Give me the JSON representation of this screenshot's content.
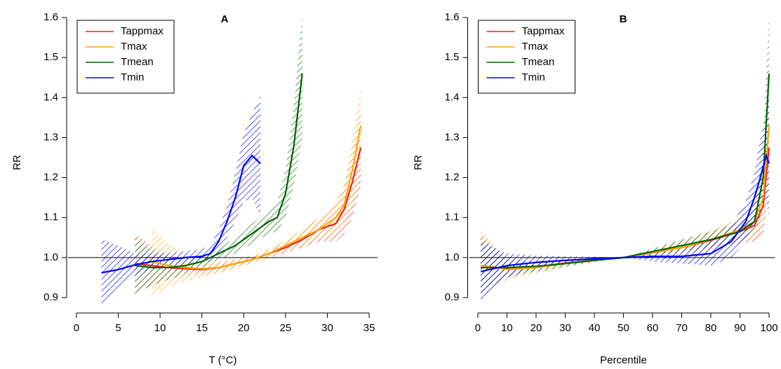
{
  "chart_data": [
    {
      "type": "line",
      "title": "A",
      "xlabel": "T (°C)",
      "ylabel": "RR",
      "xlim": [
        -1,
        36.5
      ],
      "ylim": [
        0.865,
        1.61
      ],
      "xticks": [
        0,
        5,
        10,
        15,
        20,
        25,
        30,
        35
      ],
      "yticks": [
        0.9,
        {
          "value": 1,
          "label": "1.0"
        },
        1.1,
        1.2,
        1.3,
        1.4,
        1.5,
        1.6
      ],
      "hline": 1,
      "legend": "upper left",
      "series": [
        {
          "name": "Tappmax",
          "color": "#ee2222",
          "x": [
            7,
            9,
            11,
            13,
            15,
            17,
            19,
            21,
            23,
            25,
            27,
            29,
            31,
            32,
            33,
            34
          ],
          "values": [
            0.985,
            0.98,
            0.975,
            0.972,
            0.97,
            0.975,
            0.985,
            0.995,
            1.01,
            1.025,
            1.045,
            1.07,
            1.085,
            1.12,
            1.19,
            1.275
          ],
          "lower": [
            0.91,
            0.93,
            0.945,
            0.955,
            0.958,
            0.963,
            0.975,
            0.987,
            1.0,
            1.012,
            1.025,
            1.04,
            1.04,
            1.06,
            1.1,
            1.18
          ],
          "upper": [
            1.06,
            1.03,
            1.005,
            0.99,
            0.982,
            0.987,
            0.995,
            1.003,
            1.02,
            1.04,
            1.065,
            1.1,
            1.13,
            1.18,
            1.27,
            1.37
          ]
        },
        {
          "name": "Tmax",
          "color": "#ffa500",
          "x": [
            9,
            11,
            13,
            15,
            17,
            19,
            21,
            23,
            25,
            27,
            29,
            31,
            32,
            33,
            34
          ],
          "values": [
            0.99,
            0.98,
            0.975,
            0.972,
            0.975,
            0.985,
            0.995,
            1.01,
            1.03,
            1.05,
            1.07,
            1.1,
            1.13,
            1.22,
            1.33
          ],
          "lower": [
            0.9,
            0.925,
            0.94,
            0.95,
            0.96,
            0.972,
            0.985,
            0.998,
            1.015,
            1.03,
            1.045,
            1.06,
            1.08,
            1.13,
            1.22
          ],
          "upper": [
            1.075,
            1.035,
            1.01,
            0.995,
            0.99,
            0.997,
            1.005,
            1.022,
            1.045,
            1.07,
            1.1,
            1.14,
            1.18,
            1.3,
            1.43
          ]
        },
        {
          "name": "Tmean",
          "color": "#006400",
          "x": [
            7,
            9,
            11,
            13,
            15,
            17,
            19,
            21,
            23,
            24,
            25,
            26,
            27
          ],
          "values": [
            0.98,
            0.975,
            0.975,
            0.98,
            0.99,
            1.01,
            1.03,
            1.06,
            1.09,
            1.1,
            1.16,
            1.28,
            1.46
          ],
          "lower": [
            0.91,
            0.93,
            0.945,
            0.96,
            0.975,
            0.995,
            1.01,
            1.035,
            1.06,
            1.065,
            1.1,
            1.18,
            1.3
          ],
          "upper": [
            1.05,
            1.02,
            1.0,
            0.998,
            1.005,
            1.025,
            1.05,
            1.085,
            1.12,
            1.14,
            1.22,
            1.38,
            1.61
          ]
        },
        {
          "name": "Tmin",
          "color": "#0000ff",
          "x": [
            3,
            5,
            7,
            9,
            11,
            13,
            15,
            16,
            17,
            18,
            19,
            20,
            21,
            22
          ],
          "values": [
            0.962,
            0.97,
            0.982,
            0.99,
            0.995,
            1.0,
            1.003,
            1.01,
            1.04,
            1.09,
            1.15,
            1.23,
            1.255,
            1.235
          ],
          "lower": [
            0.885,
            0.92,
            0.955,
            0.97,
            0.98,
            0.985,
            0.985,
            0.99,
            1.01,
            1.05,
            1.09,
            1.14,
            1.15,
            1.1
          ],
          "upper": [
            1.045,
            1.03,
            1.01,
            1.01,
            1.012,
            1.016,
            1.022,
            1.03,
            1.07,
            1.13,
            1.21,
            1.31,
            1.36,
            1.405
          ]
        }
      ]
    },
    {
      "type": "line",
      "title": "B",
      "xlabel": "Percentile",
      "ylabel": "RR",
      "xlim": [
        -3,
        103.5
      ],
      "ylim": [
        0.865,
        1.61
      ],
      "xticks": [
        0,
        10,
        20,
        30,
        40,
        50,
        60,
        70,
        80,
        90,
        100
      ],
      "yticks": [
        0.9,
        {
          "value": 1,
          "label": "1.0"
        },
        1.1,
        1.2,
        1.3,
        1.4,
        1.5,
        1.6
      ],
      "hline": 1,
      "legend": "upper left",
      "series": [
        {
          "name": "Tappmax",
          "color": "#ee2222",
          "x": [
            1,
            10,
            20,
            30,
            40,
            50,
            60,
            70,
            80,
            90,
            95,
            98,
            100
          ],
          "values": [
            0.98,
            0.972,
            0.977,
            0.986,
            0.994,
            1.0,
            1.012,
            1.025,
            1.043,
            1.065,
            1.08,
            1.13,
            1.275
          ],
          "lower": [
            0.92,
            0.95,
            0.965,
            0.978,
            0.99,
            1.0,
            1.005,
            1.01,
            1.02,
            1.035,
            1.04,
            1.06,
            1.18
          ],
          "upper": [
            1.06,
            0.995,
            0.99,
            0.995,
            0.998,
            1.0,
            1.02,
            1.04,
            1.065,
            1.09,
            1.12,
            1.2,
            1.37
          ]
        },
        {
          "name": "Tmax",
          "color": "#ffa500",
          "x": [
            1,
            10,
            20,
            30,
            40,
            50,
            60,
            70,
            80,
            90,
            95,
            98,
            100
          ],
          "values": [
            0.98,
            0.97,
            0.975,
            0.985,
            0.993,
            1.0,
            1.012,
            1.025,
            1.045,
            1.07,
            1.09,
            1.15,
            1.33
          ],
          "lower": [
            0.9,
            0.945,
            0.96,
            0.975,
            0.988,
            1.0,
            1.003,
            1.01,
            1.02,
            1.04,
            1.05,
            1.08,
            1.22
          ],
          "upper": [
            1.07,
            0.995,
            0.99,
            0.995,
            0.998,
            1.0,
            1.022,
            1.045,
            1.07,
            1.1,
            1.13,
            1.22,
            1.43
          ]
        },
        {
          "name": "Tmean",
          "color": "#006400",
          "x": [
            1,
            10,
            20,
            30,
            40,
            50,
            60,
            70,
            80,
            90,
            95,
            98,
            100
          ],
          "values": [
            0.975,
            0.975,
            0.978,
            0.985,
            0.993,
            1.0,
            1.015,
            1.03,
            1.045,
            1.065,
            1.09,
            1.2,
            1.46
          ],
          "lower": [
            0.91,
            0.95,
            0.965,
            0.977,
            0.989,
            1.0,
            1.008,
            1.015,
            1.025,
            1.04,
            1.06,
            1.12,
            1.3
          ],
          "upper": [
            1.05,
            0.998,
            0.99,
            0.993,
            0.997,
            1.0,
            1.022,
            1.045,
            1.065,
            1.09,
            1.12,
            1.3,
            1.61
          ]
        },
        {
          "name": "Tmin",
          "color": "#0000ff",
          "x": [
            1,
            10,
            20,
            30,
            40,
            50,
            60,
            70,
            80,
            87,
            92,
            95,
            97,
            99,
            100
          ],
          "values": [
            0.965,
            0.98,
            0.988,
            0.993,
            0.997,
            1.0,
            1.003,
            1.003,
            1.01,
            1.04,
            1.09,
            1.15,
            1.2,
            1.255,
            1.235
          ],
          "lower": [
            0.89,
            0.95,
            0.975,
            0.985,
            0.993,
            1.0,
            0.99,
            0.985,
            0.98,
            1.0,
            1.04,
            1.09,
            1.13,
            1.15,
            1.1
          ],
          "upper": [
            1.04,
            1.01,
            1.005,
            1.003,
            1.002,
            1.0,
            1.012,
            1.02,
            1.04,
            1.08,
            1.14,
            1.21,
            1.3,
            1.36,
            1.405
          ]
        }
      ]
    }
  ]
}
